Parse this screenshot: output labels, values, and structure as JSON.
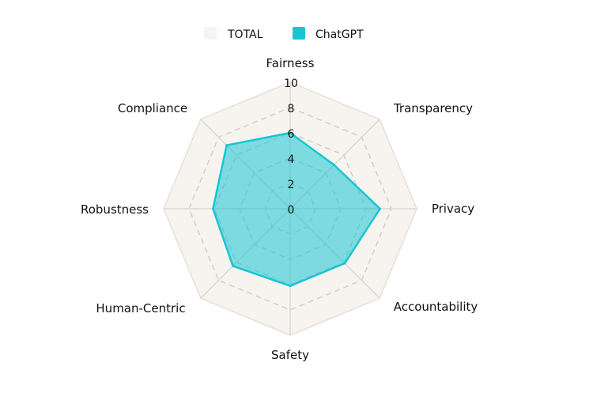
{
  "chart_data": {
    "type": "radar",
    "axes": [
      "Fairness",
      "Transparency",
      "Privacy",
      "Accountability",
      "Safety",
      "Human-Centric",
      "Robustness",
      "Compliance"
    ],
    "r_ticks": [
      0,
      2,
      4,
      6,
      8,
      10
    ],
    "r_range": [
      0,
      10
    ],
    "series": [
      {
        "name": "TOTAL",
        "values": [
          10,
          10,
          10,
          10,
          10,
          10,
          10,
          10
        ],
        "color": "#f7f4ef"
      },
      {
        "name": "ChatGPT",
        "values": [
          6,
          4.9,
          7.1,
          6.1,
          6.1,
          6.4,
          6.1,
          7.1
        ],
        "color": "#17c5d3"
      }
    ],
    "legend_position": "top-center",
    "grid": true
  }
}
